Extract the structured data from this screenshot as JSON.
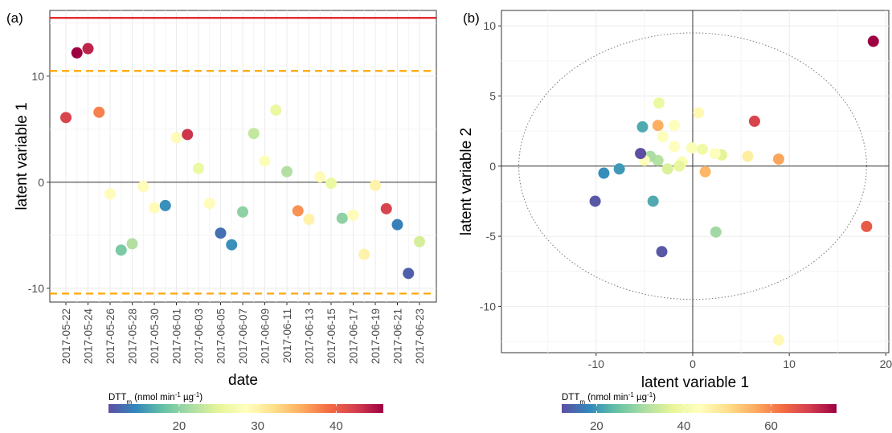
{
  "figure": {
    "panel_labels": [
      "(a)",
      "(b)"
    ],
    "colorbars": [
      {
        "title_main": "DTT",
        "title_sub": "m",
        "title_rest": " (nmol min",
        "title_sup1": "-1",
        "title_mid": " µg",
        "title_sup2": "-1",
        "title_end": ")",
        "range": [
          11,
          46
        ],
        "ticks": [
          20,
          30,
          40
        ]
      },
      {
        "title_main": "DTT",
        "title_sub": "m",
        "title_rest": " (nmol min",
        "title_sup1": "-1",
        "title_mid": " µg",
        "title_sup2": "-1",
        "title_end": ")",
        "range": [
          12,
          75
        ],
        "ticks": [
          20,
          40,
          60
        ]
      }
    ],
    "palette": [
      "#5E4FA2",
      "#3288BD",
      "#66C2A5",
      "#ABDDA4",
      "#E6F598",
      "#FFFFBF",
      "#FEE08B",
      "#FDAE61",
      "#F46D43",
      "#D53E4F",
      "#9E0142"
    ],
    "threshold_colors": {
      "solid": "#E31A1C",
      "dashed": "#FFA500"
    }
  },
  "chart_data": [
    {
      "type": "scatter",
      "xlabel": "date",
      "ylabel": "latent variable 1",
      "x_tick_labels": [
        "2017-05-22",
        "2017-05-24",
        "2017-05-26",
        "2017-05-28",
        "2017-05-30",
        "2017-06-01",
        "2017-06-03",
        "2017-06-05",
        "2017-06-07",
        "2017-06-09",
        "2017-06-11",
        "2017-06-13",
        "2017-06-15",
        "2017-06-17",
        "2017-06-19",
        "2017-06-21",
        "2017-06-23"
      ],
      "y_ticks": [
        -10,
        0,
        10
      ],
      "ylim": [
        -11.3,
        16.2
      ],
      "reference_lines": {
        "solid": 15.5,
        "dashed_upper": 10.5,
        "dashed_lower": -10.5,
        "zero": 0
      },
      "grid": true,
      "points": [
        {
          "x": "2017-05-22",
          "y": 6.1,
          "dtt": 42
        },
        {
          "x": "2017-05-23",
          "y": 12.2,
          "dtt": 46
        },
        {
          "x": "2017-05-24",
          "y": 12.6,
          "dtt": 44
        },
        {
          "x": "2017-05-25",
          "y": 6.6,
          "dtt": 38
        },
        {
          "x": "2017-05-26",
          "y": -1.1,
          "dtt": 29
        },
        {
          "x": "2017-05-27",
          "y": -6.4,
          "dtt": 19
        },
        {
          "x": "2017-05-28",
          "y": -5.8,
          "dtt": 22
        },
        {
          "x": "2017-05-29",
          "y": -0.4,
          "dtt": 29
        },
        {
          "x": "2017-05-30",
          "y": -2.4,
          "dtt": 29
        },
        {
          "x": "2017-05-31",
          "y": -2.2,
          "dtt": 15
        },
        {
          "x": "2017-06-01",
          "y": 4.2,
          "dtt": 29
        },
        {
          "x": "2017-06-02",
          "y": 4.5,
          "dtt": 43
        },
        {
          "x": "2017-06-03",
          "y": 1.3,
          "dtt": 26
        },
        {
          "x": "2017-06-04",
          "y": -2.0,
          "dtt": 29
        },
        {
          "x": "2017-06-05",
          "y": -4.8,
          "dtt": 13
        },
        {
          "x": "2017-06-06",
          "y": -5.9,
          "dtt": 15
        },
        {
          "x": "2017-06-07",
          "y": -2.8,
          "dtt": 20
        },
        {
          "x": "2017-06-08",
          "y": 4.6,
          "dtt": 23
        },
        {
          "x": "2017-06-09",
          "y": 2.0,
          "dtt": 28
        },
        {
          "x": "2017-06-10",
          "y": 6.8,
          "dtt": 26
        },
        {
          "x": "2017-06-11",
          "y": 1.0,
          "dtt": 22
        },
        {
          "x": "2017-06-12",
          "y": -2.7,
          "dtt": 37
        },
        {
          "x": "2017-06-13",
          "y": -3.5,
          "dtt": 30
        },
        {
          "x": "2017-06-14",
          "y": 0.5,
          "dtt": 29
        },
        {
          "x": "2017-06-15",
          "y": -0.1,
          "dtt": 26
        },
        {
          "x": "2017-06-16",
          "y": -3.4,
          "dtt": 20
        },
        {
          "x": "2017-06-17",
          "y": -3.1,
          "dtt": 29
        },
        {
          "x": "2017-06-18",
          "y": -6.8,
          "dtt": 30
        },
        {
          "x": "2017-06-19",
          "y": -0.3,
          "dtt": 30
        },
        {
          "x": "2017-06-20",
          "y": -2.5,
          "dtt": 42
        },
        {
          "x": "2017-06-21",
          "y": -4.0,
          "dtt": 14
        },
        {
          "x": "2017-06-22",
          "y": -8.6,
          "dtt": 12
        },
        {
          "x": "2017-06-23",
          "y": -5.6,
          "dtt": 24
        }
      ]
    },
    {
      "type": "scatter",
      "xlabel": "latent variable 1",
      "ylabel": "latent variable 2",
      "x_ticks": [
        -10,
        0,
        10,
        20
      ],
      "y_ticks": [
        -10,
        -5,
        0,
        5,
        10
      ],
      "xlim": [
        -19.8,
        20.3
      ],
      "ylim": [
        -13.3,
        11.1
      ],
      "ellipse": {
        "cx": 0,
        "cy": 0,
        "rx": 18,
        "ry": 9.5
      },
      "grid": true,
      "points": [
        {
          "x": 18.7,
          "y": 8.9,
          "dtt": 75
        },
        {
          "x": 18.0,
          "y": -4.3,
          "dtt": 65
        },
        {
          "x": 8.9,
          "y": 0.5,
          "dtt": 57
        },
        {
          "x": 8.9,
          "y": -12.4,
          "dtt": 45
        },
        {
          "x": 6.4,
          "y": 3.2,
          "dtt": 68
        },
        {
          "x": 5.7,
          "y": 0.7,
          "dtt": 47
        },
        {
          "x": 3.0,
          "y": 0.8,
          "dtt": 37
        },
        {
          "x": 2.3,
          "y": 0.9,
          "dtt": 43
        },
        {
          "x": 2.4,
          "y": -4.7,
          "dtt": 30
        },
        {
          "x": 1.3,
          "y": -0.4,
          "dtt": 55
        },
        {
          "x": 1.0,
          "y": 1.2,
          "dtt": 40
        },
        {
          "x": 0.6,
          "y": 3.8,
          "dtt": 45
        },
        {
          "x": -0.1,
          "y": 1.3,
          "dtt": 42
        },
        {
          "x": -1.1,
          "y": 0.3,
          "dtt": 42
        },
        {
          "x": -1.4,
          "y": 0.0,
          "dtt": 38
        },
        {
          "x": -1.9,
          "y": 1.4,
          "dtt": 43
        },
        {
          "x": -1.9,
          "y": 2.9,
          "dtt": 43
        },
        {
          "x": -2.6,
          "y": -0.2,
          "dtt": 36
        },
        {
          "x": -3.1,
          "y": 2.1,
          "dtt": 43
        },
        {
          "x": -3.2,
          "y": -6.1,
          "dtt": 13
        },
        {
          "x": -3.5,
          "y": 4.5,
          "dtt": 39
        },
        {
          "x": -3.6,
          "y": 2.9,
          "dtt": 56
        },
        {
          "x": -3.6,
          "y": 0.4,
          "dtt": 32
        },
        {
          "x": -4.4,
          "y": 0.7,
          "dtt": 31
        },
        {
          "x": -4.1,
          "y": -2.5,
          "dtt": 22
        },
        {
          "x": -5.0,
          "y": 0.4,
          "dtt": 44
        },
        {
          "x": -5.2,
          "y": 2.8,
          "dtt": 22
        },
        {
          "x": -5.4,
          "y": 0.9,
          "dtt": 12
        },
        {
          "x": -7.6,
          "y": -0.2,
          "dtt": 20
        },
        {
          "x": -9.2,
          "y": -0.5,
          "dtt": 19
        },
        {
          "x": -10.1,
          "y": -2.5,
          "dtt": 13
        }
      ]
    }
  ]
}
